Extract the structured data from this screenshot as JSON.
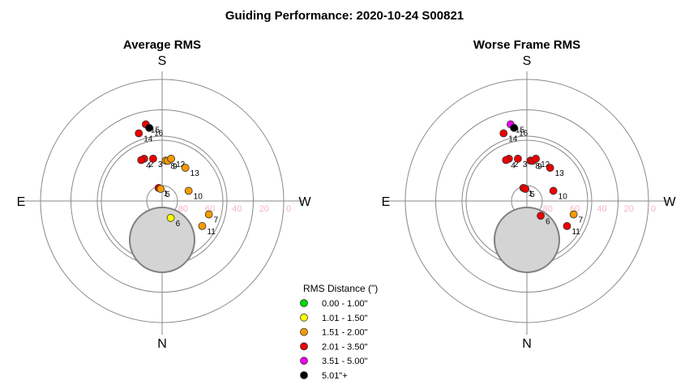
{
  "chart_data": {
    "type": "scatter",
    "subtype": "polar-sky",
    "title": "Guiding Performance: 2020-10-24 S00821",
    "cardinal": {
      "top": "S",
      "bottom": "N",
      "left": "E",
      "right": "W"
    },
    "radial_ticks": [
      "80",
      "60",
      "40",
      "20",
      "0"
    ],
    "legend": {
      "title": "RMS Distance (\")",
      "entries": [
        {
          "label": "0.00 - 1.00\"",
          "color": "#00dd00"
        },
        {
          "label": "1.01 - 1.50\"",
          "color": "#ffff00"
        },
        {
          "label": "1.51 - 2.00\"",
          "color": "#f59b00"
        },
        {
          "label": "2.01 - 3.50\"",
          "color": "#ee0000"
        },
        {
          "label": "3.51 - 5.00\"",
          "color": "#ee00ee"
        },
        {
          "label": "5.01\"+",
          "color": "#000000"
        }
      ]
    },
    "panels": [
      {
        "title": "Average RMS",
        "points": [
          {
            "id": "1",
            "az": 195,
            "alt": 80,
            "cat": 3
          },
          {
            "id": "2",
            "az": 203,
            "alt": 56,
            "cat": 3
          },
          {
            "id": "3",
            "az": 192,
            "alt": 58,
            "cat": 3
          },
          {
            "id": "4",
            "az": 207,
            "alt": 56,
            "cat": 3
          },
          {
            "id": "5",
            "az": 187,
            "alt": 81,
            "cat": 2
          },
          {
            "id": "6",
            "az": 27,
            "alt": 76,
            "cat": 1
          },
          {
            "id": "7",
            "az": 74,
            "alt": 54,
            "cat": 2
          },
          {
            "id": "8",
            "az": 175,
            "alt": 60,
            "cat": 2
          },
          {
            "id": "9",
            "az": 172,
            "alt": 60,
            "cat": 2
          },
          {
            "id": "10",
            "az": 111,
            "alt": 69,
            "cat": 2
          },
          {
            "id": "11",
            "az": 58,
            "alt": 55,
            "cat": 2
          },
          {
            "id": "12",
            "az": 168,
            "alt": 58,
            "cat": 2
          },
          {
            "id": "13",
            "az": 145,
            "alt": 60,
            "cat": 2
          },
          {
            "id": "14",
            "az": 199,
            "alt": 37,
            "cat": 3
          },
          {
            "id": "15",
            "az": 192,
            "alt": 32,
            "cat": 3
          },
          {
            "id": "16",
            "az": 190,
            "alt": 35,
            "cat": 5
          }
        ]
      },
      {
        "title": "Worse Frame RMS",
        "points": [
          {
            "id": "1",
            "az": 195,
            "alt": 80,
            "cat": 3
          },
          {
            "id": "2",
            "az": 203,
            "alt": 56,
            "cat": 3
          },
          {
            "id": "3",
            "az": 192,
            "alt": 58,
            "cat": 3
          },
          {
            "id": "4",
            "az": 207,
            "alt": 56,
            "cat": 3
          },
          {
            "id": "5",
            "az": 187,
            "alt": 81,
            "cat": 3
          },
          {
            "id": "6",
            "az": 43,
            "alt": 75,
            "cat": 3
          },
          {
            "id": "7",
            "az": 74,
            "alt": 54,
            "cat": 2
          },
          {
            "id": "8",
            "az": 175,
            "alt": 60,
            "cat": 3
          },
          {
            "id": "9",
            "az": 172,
            "alt": 60,
            "cat": 3
          },
          {
            "id": "10",
            "az": 111,
            "alt": 69,
            "cat": 3
          },
          {
            "id": "11",
            "az": 58,
            "alt": 55,
            "cat": 3
          },
          {
            "id": "12",
            "az": 168,
            "alt": 58,
            "cat": 3
          },
          {
            "id": "13",
            "az": 145,
            "alt": 60,
            "cat": 3
          },
          {
            "id": "14",
            "az": 199,
            "alt": 37,
            "cat": 3
          },
          {
            "id": "15",
            "az": 192,
            "alt": 32,
            "cat": 4
          },
          {
            "id": "16",
            "az": 190,
            "alt": 35,
            "cat": 5
          }
        ]
      }
    ]
  }
}
